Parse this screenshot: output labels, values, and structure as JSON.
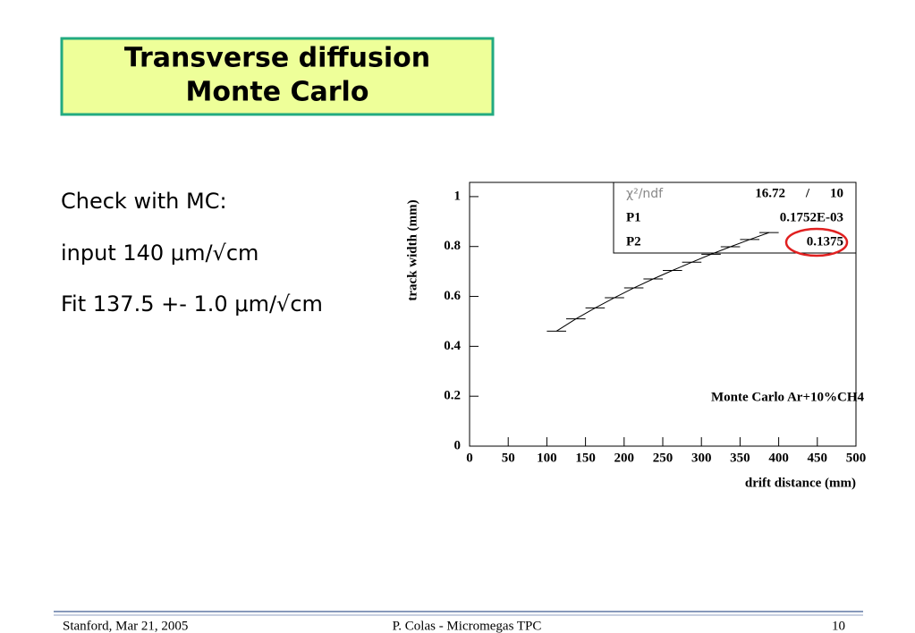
{
  "title": [
    "Transverse diffusion",
    "Monte Carlo"
  ],
  "body": [
    "Check with MC:",
    "input 140 μm/√cm",
    "Fit 137.5 +- 1.0 μm/√cm"
  ],
  "footer": {
    "left": "Stanford,  Mar 21, 2005",
    "center": "P. Colas  -  Micromegas TPC",
    "right": "10"
  },
  "chart_data": {
    "type": "errorbar",
    "x_label": "drift distance (mm)",
    "y_label": "track width (mm)",
    "annotation": "Monte Carlo Ar+10%CH4",
    "stats": {
      "chi2_label": "χ²/ndf",
      "chi2": "16.72",
      "slash": "/",
      "ndf": "10",
      "p1_label": "P1",
      "p1": "0.1752E-03",
      "p2_label": "P2",
      "p2": "0.1375"
    },
    "x": [
      112.5,
      137.5,
      162.5,
      187.5,
      212.5,
      237.5,
      262.5,
      287.5,
      312.5,
      337.5,
      362.5,
      387.5
    ],
    "values": [
      0.461,
      0.51,
      0.554,
      0.595,
      0.634,
      0.67,
      0.704,
      0.737,
      0.769,
      0.799,
      0.828,
      0.856
    ],
    "xerr": [
      12.5,
      12.5,
      12.5,
      12.5,
      12.5,
      12.5,
      12.5,
      12.5,
      12.5,
      12.5,
      12.5,
      12.5
    ],
    "color": "#000000",
    "xlim": [
      0,
      500
    ],
    "xticks": [
      0,
      50,
      100,
      150,
      200,
      250,
      300,
      350,
      400,
      450,
      500
    ],
    "ylim": [
      0,
      1.057
    ],
    "yticks": [
      0,
      0.2,
      0.4,
      0.6,
      0.8,
      1
    ]
  }
}
